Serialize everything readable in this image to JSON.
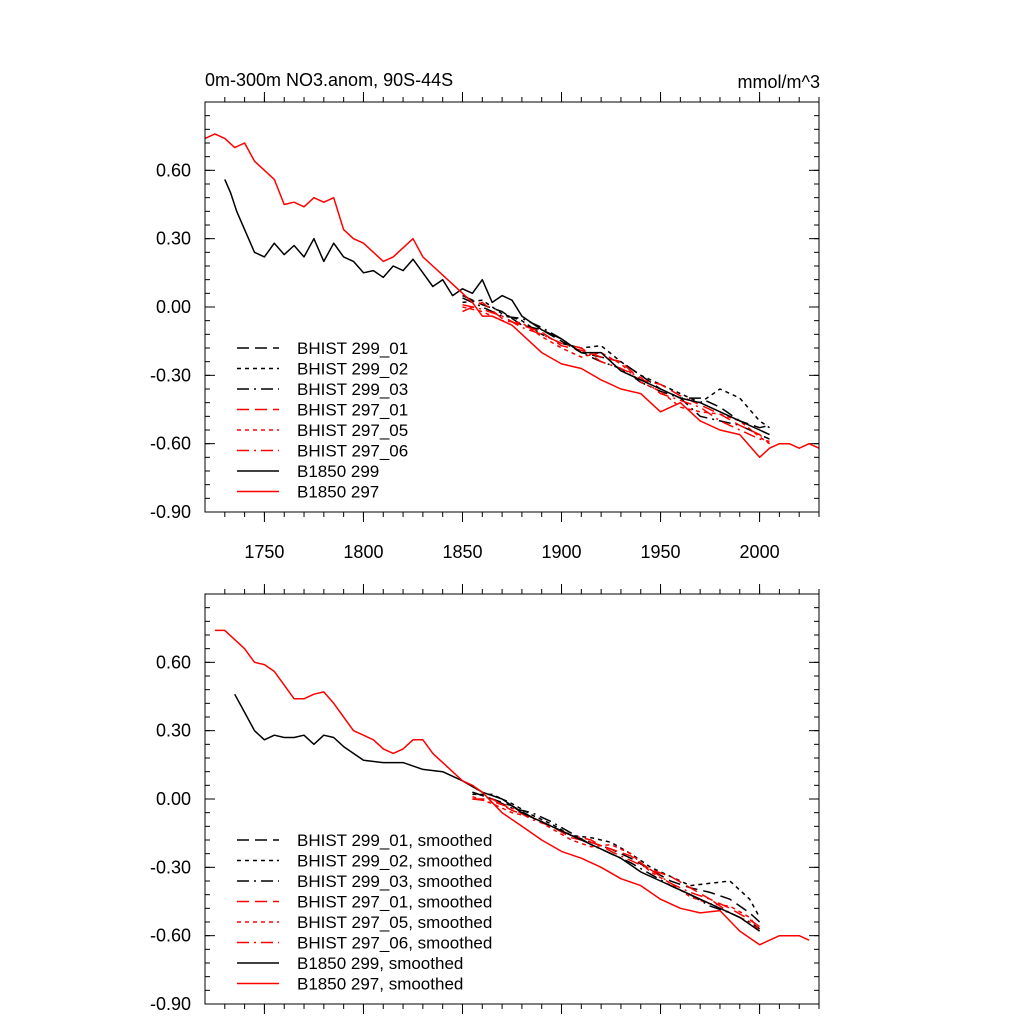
{
  "chart_data": [
    {
      "type": "line",
      "title": "0m-300m NO3.anom, 90S-44S",
      "units": "mmol/m^3",
      "xlim": [
        1720,
        2030
      ],
      "ylim": [
        -0.9,
        0.9
      ],
      "xticks": [
        1750,
        1800,
        1850,
        1900,
        1950,
        2000
      ],
      "xtick_labels": [
        "1750",
        "1800",
        "1850",
        "1900",
        "1950",
        "2000"
      ],
      "yticks": [
        0.6,
        0.3,
        0.0,
        -0.3,
        -0.6,
        -0.9
      ],
      "ytick_labels": [
        "0.60",
        "0.30",
        "0.00",
        "-0.30",
        "-0.60",
        "-0.90"
      ],
      "legend_position": "lower-left",
      "series": [
        {
          "name": "BHIST 299_01",
          "color": "#000000",
          "dash": "dash",
          "x": [
            1850,
            1860,
            1870,
            1880,
            1890,
            1900,
            1910,
            1920,
            1930,
            1940,
            1950,
            1960,
            1970,
            1980,
            1990,
            2000,
            2005
          ],
          "y": [
            0.05,
            0.01,
            -0.02,
            -0.08,
            -0.1,
            -0.15,
            -0.2,
            -0.22,
            -0.24,
            -0.3,
            -0.36,
            -0.4,
            -0.4,
            -0.44,
            -0.5,
            -0.53,
            -0.52
          ]
        },
        {
          "name": "BHIST 299_02",
          "color": "#000000",
          "dash": "dot",
          "x": [
            1850,
            1860,
            1870,
            1880,
            1890,
            1900,
            1910,
            1920,
            1930,
            1940,
            1950,
            1960,
            1970,
            1980,
            1990,
            2000,
            2005
          ],
          "y": [
            0.02,
            0.03,
            -0.03,
            -0.06,
            -0.12,
            -0.16,
            -0.18,
            -0.17,
            -0.24,
            -0.3,
            -0.34,
            -0.38,
            -0.42,
            -0.36,
            -0.4,
            -0.5,
            -0.53
          ]
        },
        {
          "name": "BHIST 299_03",
          "color": "#000000",
          "dash": "dashdot",
          "x": [
            1850,
            1860,
            1870,
            1880,
            1890,
            1900,
            1910,
            1920,
            1930,
            1940,
            1950,
            1960,
            1970,
            1980,
            1990,
            2000,
            2005
          ],
          "y": [
            0.04,
            0.0,
            -0.04,
            -0.05,
            -0.09,
            -0.14,
            -0.2,
            -0.24,
            -0.27,
            -0.33,
            -0.37,
            -0.4,
            -0.48,
            -0.5,
            -0.52,
            -0.56,
            -0.58
          ]
        },
        {
          "name": "BHIST 297_01",
          "color": "#ff0000",
          "dash": "dash",
          "x": [
            1850,
            1860,
            1870,
            1880,
            1890,
            1900,
            1910,
            1920,
            1930,
            1940,
            1950,
            1960,
            1970,
            1980,
            1990,
            2000,
            2005
          ],
          "y": [
            -0.02,
            0.02,
            -0.05,
            -0.08,
            -0.11,
            -0.17,
            -0.19,
            -0.22,
            -0.24,
            -0.32,
            -0.34,
            -0.39,
            -0.43,
            -0.47,
            -0.52,
            -0.56,
            -0.6
          ]
        },
        {
          "name": "BHIST 297_05",
          "color": "#ff0000",
          "dash": "dot",
          "x": [
            1850,
            1860,
            1870,
            1880,
            1890,
            1900,
            1910,
            1920,
            1930,
            1940,
            1950,
            1960,
            1970,
            1980,
            1990,
            2000,
            2005
          ],
          "y": [
            0.0,
            -0.02,
            -0.06,
            -0.07,
            -0.13,
            -0.18,
            -0.22,
            -0.2,
            -0.25,
            -0.33,
            -0.37,
            -0.44,
            -0.46,
            -0.47,
            -0.5,
            -0.57,
            -0.6
          ]
        },
        {
          "name": "BHIST 297_06",
          "color": "#ff0000",
          "dash": "dashdot",
          "x": [
            1850,
            1860,
            1870,
            1880,
            1890,
            1900,
            1910,
            1920,
            1930,
            1940,
            1950,
            1960,
            1970,
            1980,
            1990,
            2000,
            2005
          ],
          "y": [
            0.01,
            -0.01,
            -0.04,
            -0.09,
            -0.12,
            -0.16,
            -0.18,
            -0.24,
            -0.27,
            -0.31,
            -0.38,
            -0.41,
            -0.44,
            -0.5,
            -0.54,
            -0.58,
            -0.59
          ]
        },
        {
          "name": "B1850 299",
          "color": "#000000",
          "dash": "solid",
          "x": [
            1730,
            1733,
            1736,
            1740,
            1745,
            1750,
            1755,
            1760,
            1765,
            1770,
            1775,
            1780,
            1785,
            1790,
            1795,
            1800,
            1805,
            1810,
            1815,
            1820,
            1825,
            1830,
            1835,
            1840,
            1845,
            1850,
            1855,
            1860,
            1865,
            1870,
            1875,
            1880,
            1890,
            1900,
            1910,
            1920,
            1930,
            1940,
            1950,
            1960,
            1970,
            1980,
            1990,
            2000,
            2005
          ],
          "y": [
            0.56,
            0.5,
            0.42,
            0.34,
            0.24,
            0.22,
            0.28,
            0.23,
            0.27,
            0.22,
            0.3,
            0.2,
            0.28,
            0.22,
            0.2,
            0.15,
            0.16,
            0.13,
            0.18,
            0.16,
            0.21,
            0.15,
            0.09,
            0.12,
            0.05,
            0.08,
            0.06,
            0.12,
            0.02,
            0.05,
            0.03,
            -0.04,
            -0.1,
            -0.14,
            -0.2,
            -0.2,
            -0.28,
            -0.32,
            -0.36,
            -0.4,
            -0.42,
            -0.46,
            -0.5,
            -0.54,
            -0.56
          ]
        },
        {
          "name": "B1850 297",
          "color": "#ff0000",
          "dash": "solid",
          "x": [
            1720,
            1725,
            1730,
            1735,
            1740,
            1745,
            1750,
            1755,
            1760,
            1765,
            1770,
            1775,
            1780,
            1785,
            1790,
            1795,
            1800,
            1805,
            1810,
            1815,
            1820,
            1825,
            1830,
            1835,
            1840,
            1845,
            1850,
            1855,
            1860,
            1865,
            1870,
            1875,
            1880,
            1890,
            1900,
            1910,
            1920,
            1930,
            1940,
            1950,
            1960,
            1970,
            1980,
            1990,
            2000,
            2005,
            2010,
            2015,
            2020,
            2025,
            2030
          ],
          "y": [
            0.74,
            0.76,
            0.74,
            0.7,
            0.72,
            0.64,
            0.6,
            0.56,
            0.45,
            0.46,
            0.44,
            0.48,
            0.46,
            0.48,
            0.34,
            0.3,
            0.28,
            0.24,
            0.2,
            0.22,
            0.26,
            0.3,
            0.22,
            0.18,
            0.14,
            0.1,
            0.06,
            0.02,
            -0.04,
            -0.04,
            -0.06,
            -0.08,
            -0.12,
            -0.2,
            -0.25,
            -0.27,
            -0.32,
            -0.36,
            -0.38,
            -0.46,
            -0.42,
            -0.5,
            -0.54,
            -0.56,
            -0.66,
            -0.62,
            -0.6,
            -0.6,
            -0.62,
            -0.6,
            -0.62
          ]
        }
      ],
      "legend_entries": [
        "BHIST 299_01",
        "BHIST 299_02",
        "BHIST 299_03",
        "BHIST 297_01",
        "BHIST 297_05",
        "BHIST 297_06",
        "B1850 299",
        "B1850 297"
      ]
    },
    {
      "type": "line",
      "title": "",
      "xlim": [
        1720,
        2030
      ],
      "ylim": [
        -0.9,
        0.9
      ],
      "yticks": [
        0.6,
        0.3,
        0.0,
        -0.3,
        -0.6,
        -0.9
      ],
      "ytick_labels": [
        "0.60",
        "0.30",
        "0.00",
        "-0.30",
        "-0.60",
        "-0.90"
      ],
      "legend_position": "lower-left",
      "series": [
        {
          "name": "BHIST 299_01, smoothed",
          "color": "#000000",
          "dash": "dash",
          "x": [
            1855,
            1865,
            1875,
            1885,
            1895,
            1905,
            1915,
            1925,
            1935,
            1945,
            1955,
            1965,
            1975,
            1985,
            1995,
            2000
          ],
          "y": [
            0.03,
            0.0,
            -0.03,
            -0.08,
            -0.12,
            -0.16,
            -0.19,
            -0.22,
            -0.26,
            -0.31,
            -0.36,
            -0.39,
            -0.41,
            -0.44,
            -0.5,
            -0.54
          ]
        },
        {
          "name": "BHIST 299_02, smoothed",
          "color": "#000000",
          "dash": "dot",
          "x": [
            1855,
            1865,
            1875,
            1885,
            1895,
            1905,
            1915,
            1925,
            1935,
            1945,
            1955,
            1965,
            1975,
            1985,
            1995,
            2000
          ],
          "y": [
            0.02,
            0.02,
            -0.02,
            -0.07,
            -0.11,
            -0.16,
            -0.17,
            -0.19,
            -0.24,
            -0.3,
            -0.34,
            -0.38,
            -0.37,
            -0.36,
            -0.44,
            -0.52
          ]
        },
        {
          "name": "BHIST 299_03, smoothed",
          "color": "#000000",
          "dash": "dashdot",
          "x": [
            1855,
            1865,
            1875,
            1885,
            1895,
            1905,
            1915,
            1925,
            1935,
            1945,
            1955,
            1965,
            1975,
            1985,
            1995,
            2000
          ],
          "y": [
            0.03,
            0.0,
            -0.04,
            -0.06,
            -0.1,
            -0.15,
            -0.2,
            -0.24,
            -0.28,
            -0.33,
            -0.38,
            -0.42,
            -0.47,
            -0.5,
            -0.54,
            -0.57
          ]
        },
        {
          "name": "BHIST 297_01, smoothed",
          "color": "#ff0000",
          "dash": "dash",
          "x": [
            1855,
            1865,
            1875,
            1885,
            1895,
            1905,
            1915,
            1925,
            1935,
            1945,
            1955,
            1965,
            1975,
            1985,
            1995,
            2000
          ],
          "y": [
            0.0,
            0.0,
            -0.05,
            -0.08,
            -0.12,
            -0.17,
            -0.19,
            -0.22,
            -0.25,
            -0.31,
            -0.34,
            -0.39,
            -0.44,
            -0.48,
            -0.53,
            -0.56
          ]
        },
        {
          "name": "BHIST 297_05, smoothed",
          "color": "#ff0000",
          "dash": "dot",
          "x": [
            1855,
            1865,
            1875,
            1885,
            1895,
            1905,
            1915,
            1925,
            1935,
            1945,
            1955,
            1965,
            1975,
            1985,
            1995,
            2000
          ],
          "y": [
            0.01,
            -0.02,
            -0.06,
            -0.08,
            -0.13,
            -0.18,
            -0.21,
            -0.2,
            -0.24,
            -0.32,
            -0.37,
            -0.43,
            -0.46,
            -0.47,
            -0.52,
            -0.58
          ]
        },
        {
          "name": "BHIST 297_06, smoothed",
          "color": "#ff0000",
          "dash": "dashdot",
          "x": [
            1855,
            1865,
            1875,
            1885,
            1895,
            1905,
            1915,
            1925,
            1935,
            1945,
            1955,
            1965,
            1975,
            1985,
            1995,
            2000
          ],
          "y": [
            0.0,
            -0.01,
            -0.04,
            -0.09,
            -0.12,
            -0.16,
            -0.18,
            -0.23,
            -0.27,
            -0.31,
            -0.37,
            -0.41,
            -0.44,
            -0.5,
            -0.54,
            -0.58
          ]
        },
        {
          "name": "B1850 299, smoothed",
          "color": "#000000",
          "dash": "solid",
          "x": [
            1735,
            1740,
            1745,
            1750,
            1755,
            1760,
            1765,
            1770,
            1775,
            1780,
            1785,
            1790,
            1800,
            1810,
            1820,
            1830,
            1840,
            1850,
            1860,
            1870,
            1880,
            1890,
            1900,
            1910,
            1920,
            1930,
            1940,
            1950,
            1960,
            1970,
            1980,
            1990,
            2000
          ],
          "y": [
            0.46,
            0.38,
            0.3,
            0.26,
            0.28,
            0.27,
            0.27,
            0.28,
            0.24,
            0.28,
            0.27,
            0.23,
            0.17,
            0.16,
            0.16,
            0.13,
            0.12,
            0.08,
            0.03,
            0.0,
            -0.06,
            -0.1,
            -0.14,
            -0.18,
            -0.22,
            -0.26,
            -0.32,
            -0.36,
            -0.4,
            -0.44,
            -0.48,
            -0.52,
            -0.58
          ]
        },
        {
          "name": "B1850 297, smoothed",
          "color": "#ff0000",
          "dash": "solid",
          "x": [
            1725,
            1730,
            1735,
            1740,
            1745,
            1750,
            1755,
            1760,
            1765,
            1770,
            1775,
            1780,
            1785,
            1790,
            1795,
            1800,
            1805,
            1810,
            1815,
            1820,
            1825,
            1830,
            1835,
            1840,
            1845,
            1850,
            1855,
            1860,
            1870,
            1880,
            1890,
            1900,
            1910,
            1920,
            1930,
            1940,
            1950,
            1960,
            1970,
            1980,
            1990,
            2000,
            2010,
            2020,
            2025
          ],
          "y": [
            0.74,
            0.74,
            0.7,
            0.66,
            0.6,
            0.59,
            0.56,
            0.5,
            0.44,
            0.44,
            0.46,
            0.47,
            0.42,
            0.36,
            0.3,
            0.28,
            0.26,
            0.22,
            0.2,
            0.22,
            0.26,
            0.26,
            0.2,
            0.16,
            0.12,
            0.08,
            0.06,
            0.03,
            -0.06,
            -0.12,
            -0.18,
            -0.23,
            -0.26,
            -0.3,
            -0.35,
            -0.38,
            -0.44,
            -0.48,
            -0.5,
            -0.49,
            -0.58,
            -0.64,
            -0.6,
            -0.6,
            -0.62
          ]
        }
      ],
      "legend_entries": [
        "BHIST 299_01, smoothed",
        "BHIST 299_02, smoothed",
        "BHIST 299_03, smoothed",
        "BHIST 297_01, smoothed",
        "BHIST 297_05, smoothed",
        "BHIST 297_06, smoothed",
        "B1850 299, smoothed",
        "B1850 297, smoothed"
      ]
    }
  ]
}
